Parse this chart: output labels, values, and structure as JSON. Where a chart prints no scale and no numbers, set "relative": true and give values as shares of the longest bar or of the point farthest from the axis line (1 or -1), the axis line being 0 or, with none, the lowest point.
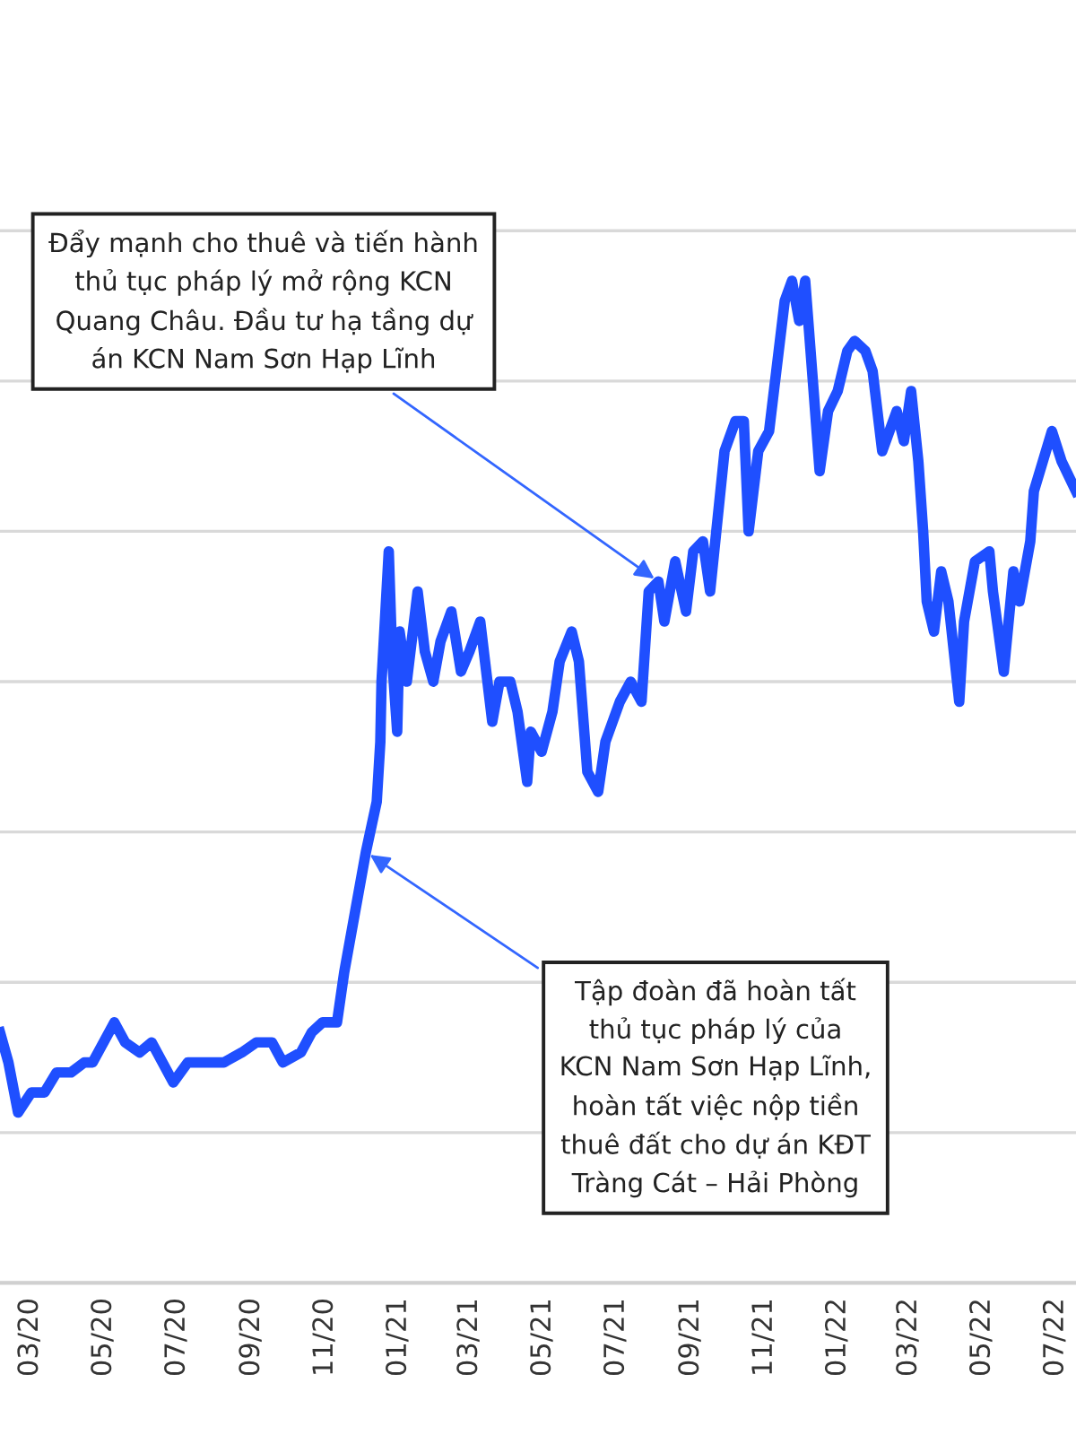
{
  "chart_data": {
    "type": "line",
    "relative": true,
    "grid": "y",
    "color": "#1f4fff",
    "marker": "none",
    "line_style": "solid",
    "x": [
      "2020-02-05",
      "2020-02-12",
      "2020-02-20",
      "2020-03-02",
      "2020-03-13",
      "2020-03-23",
      "2020-04-04",
      "2020-04-15",
      "2020-04-22",
      "2020-05-01",
      "2020-05-10",
      "2020-05-19",
      "2020-05-31",
      "2020-06-10",
      "2020-06-28",
      "2020-07-10",
      "2020-07-25",
      "2020-08-09",
      "2020-08-24",
      "2020-09-05",
      "2020-09-18",
      "2020-09-27",
      "2020-10-12",
      "2020-10-21",
      "2020-10-30",
      "2020-11-08",
      "2020-11-11",
      "2020-11-17",
      "2020-11-26",
      "2020-12-05",
      "2020-12-14",
      "2020-12-17",
      "2020-12-18",
      "2020-12-24",
      "2020-12-27",
      "2020-12-31",
      "2021-01-02",
      "2021-01-08",
      "2021-01-17",
      "2021-01-23",
      "2021-01-30",
      "2021-02-05",
      "2021-02-14",
      "2021-02-22",
      "2021-03-01",
      "2021-03-10",
      "2021-03-14",
      "2021-03-20",
      "2021-03-26",
      "2021-04-04",
      "2021-04-10",
      "2021-04-18",
      "2021-04-21",
      "2021-04-30",
      "2021-05-09",
      "2021-05-15",
      "2021-05-25",
      "2021-05-31",
      "2021-06-07",
      "2021-06-16",
      "2021-06-22",
      "2021-07-04",
      "2021-07-13",
      "2021-07-22",
      "2021-07-28",
      "2021-08-05",
      "2021-08-10",
      "2021-08-19",
      "2021-08-28",
      "2021-09-03",
      "2021-09-11",
      "2021-09-17",
      "2021-09-23",
      "2021-09-29",
      "2021-10-08",
      "2021-10-15",
      "2021-10-19",
      "2021-10-27",
      "2021-11-05",
      "2021-11-11",
      "2021-11-18",
      "2021-11-24",
      "2021-11-30",
      "2021-12-05",
      "2021-12-12",
      "2021-12-17",
      "2021-12-24",
      "2022-01-01",
      "2022-01-09",
      "2022-01-15",
      "2022-01-24",
      "2022-01-30",
      "2022-02-07",
      "2022-02-13",
      "2022-02-19",
      "2022-02-25",
      "2022-03-03",
      "2022-03-09",
      "2022-03-13",
      "2022-03-16",
      "2022-03-22",
      "2022-03-28",
      "2022-04-03",
      "2022-04-12",
      "2022-04-16",
      "2022-04-25",
      "2022-05-07",
      "2022-05-10",
      "2022-05-19",
      "2022-05-27",
      "2022-06-01",
      "2022-06-10",
      "2022-06-13",
      "2022-06-28",
      "2022-07-06",
      "2022-07-18"
    ],
    "values": [
      0.25,
      0.22,
      0.17,
      0.19,
      0.19,
      0.21,
      0.21,
      0.22,
      0.22,
      0.24,
      0.26,
      0.24,
      0.23,
      0.24,
      0.2,
      0.22,
      0.22,
      0.22,
      0.23,
      0.24,
      0.24,
      0.22,
      0.23,
      0.25,
      0.26,
      0.26,
      0.26,
      0.31,
      0.37,
      0.43,
      0.48,
      0.54,
      0.6,
      0.73,
      0.62,
      0.55,
      0.65,
      0.6,
      0.69,
      0.63,
      0.6,
      0.64,
      0.67,
      0.61,
      0.63,
      0.66,
      0.62,
      0.56,
      0.6,
      0.6,
      0.57,
      0.5,
      0.55,
      0.53,
      0.57,
      0.62,
      0.65,
      0.62,
      0.51,
      0.49,
      0.54,
      0.58,
      0.6,
      0.58,
      0.69,
      0.7,
      0.66,
      0.72,
      0.67,
      0.73,
      0.74,
      0.69,
      0.76,
      0.83,
      0.86,
      0.86,
      0.75,
      0.83,
      0.85,
      0.91,
      0.98,
      1.0,
      0.96,
      1.0,
      0.89,
      0.81,
      0.87,
      0.89,
      0.93,
      0.94,
      0.93,
      0.91,
      0.83,
      0.85,
      0.87,
      0.84,
      0.89,
      0.82,
      0.75,
      0.68,
      0.65,
      0.71,
      0.68,
      0.58,
      0.66,
      0.72,
      0.73,
      0.69,
      0.61,
      0.71,
      0.68,
      0.74,
      0.79,
      0.85,
      0.82,
      0.79
    ],
    "xlim": [
      "2020-02-05",
      "2022-07-18"
    ],
    "xticks": [
      {
        "value": "2020-03-01",
        "label": "03/20"
      },
      {
        "value": "2020-05-01",
        "label": "05/20"
      },
      {
        "value": "2020-07-01",
        "label": "07/20"
      },
      {
        "value": "2020-09-01",
        "label": "09/20"
      },
      {
        "value": "2020-11-01",
        "label": "11/20"
      },
      {
        "value": "2021-01-01",
        "label": "01/21"
      },
      {
        "value": "2021-03-01",
        "label": "03/21"
      },
      {
        "value": "2021-05-01",
        "label": "05/21"
      },
      {
        "value": "2021-07-01",
        "label": "07/21"
      },
      {
        "value": "2021-09-01",
        "label": "09/21"
      },
      {
        "value": "2021-11-01",
        "label": "11/21"
      },
      {
        "value": "2022-01-01",
        "label": "01/22"
      },
      {
        "value": "2022-03-01",
        "label": "03/22"
      },
      {
        "value": "2022-05-01",
        "label": "05/22"
      },
      {
        "value": "2022-07-01",
        "label": "07/22"
      }
    ],
    "annotations": [
      {
        "text": "Đẩy mạnh cho thuê và tiến hành\nthủ tục pháp lý mở rộng KCN\nQuang Châu. Đầu tư hạ tầng dự\nán KCN Nam Sơn Hạp Lĩnh",
        "x": "2021-08-05",
        "y": 0.7
      },
      {
        "text": "Tập đoàn đã hoàn tất\nthủ tục pháp lý của\nKCN Nam Sơn Hạp Lĩnh,\nhoàn tất việc nộp tiền\nthuê đất cho dự án KĐT\nTràng Cát – Hải Phòng",
        "x": "2020-12-05",
        "y": 0.43
      }
    ]
  }
}
